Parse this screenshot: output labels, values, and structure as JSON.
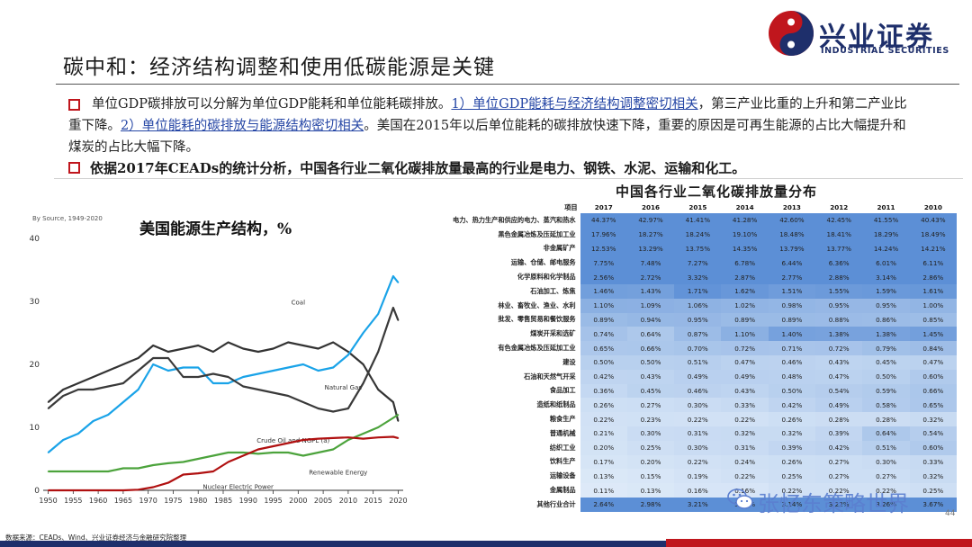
{
  "page": {
    "title": "碳中和：经济结构调整和使用低碳能源是关键",
    "logo": {
      "cn": "兴业证券",
      "en": "INDUSTRIAL SECURITIES"
    },
    "bullet1": {
      "p1": "单位GDP碳排放可以分解为单位GDP能耗和单位能耗碳排放。",
      "p2": "1）单位GDP能耗与经济结构调整密切相关",
      "p3": "，第三产业比重的上升和第二产业比重下降。",
      "p4": "2）单位能耗的碳排放与能源结构密切相关",
      "p5": "。美国在2015年以后单位能耗的碳排放快速下降，重要的原因是可再生能源的占比大幅提升和煤炭的占比大幅下降。"
    },
    "bullet2": "依据2017年CEADs的统计分析，中国各行业二氧化碳排放量最高的行业是电力、钢铁、水泥、运输和化工。",
    "footer_source": "数据来源：CEADs、Wind、兴业证券经济与金融研究院整理",
    "page_number": "44",
    "watermark": "张忆东策略世界",
    "colors": {
      "brand_navy": "#1e2f6b",
      "brand_red": "#c0161d",
      "highlight_blue": "#2546a5"
    }
  },
  "chart_data": [
    {
      "type": "line",
      "title": "美国能源生产结构，%",
      "source_note": "By Source, 1949-2020",
      "x": [
        1950,
        1953,
        1956,
        1959,
        1962,
        1965,
        1968,
        1971,
        1974,
        1977,
        1980,
        1983,
        1986,
        1989,
        1992,
        1995,
        1998,
        2001,
        2004,
        2007,
        2010,
        2013,
        2016,
        2019,
        2020
      ],
      "xticks": [
        1950,
        1955,
        1960,
        1965,
        1970,
        1975,
        1980,
        1985,
        1990,
        1995,
        2000,
        2005,
        2010,
        2015,
        2020
      ],
      "yticks": [
        0,
        10,
        20,
        30,
        40
      ],
      "ylim": [
        0,
        40
      ],
      "xlim": [
        1949,
        2021
      ],
      "series": [
        {
          "name": "Coal",
          "color": "#333333",
          "values": [
            14,
            16,
            17,
            18,
            19,
            20,
            21,
            23,
            22,
            22.5,
            23,
            22,
            23.5,
            22.5,
            22,
            22.5,
            23.5,
            23,
            22.5,
            23.5,
            22,
            20,
            16,
            14,
            11
          ]
        },
        {
          "name": "Natural Gas",
          "color": "#1aa3e8",
          "values": [
            6,
            8,
            9,
            11,
            12,
            14,
            16,
            20,
            19,
            19.5,
            19.5,
            17,
            17,
            18,
            18.5,
            19,
            19.5,
            20,
            19,
            19.5,
            21.5,
            25,
            28,
            34,
            33
          ]
        },
        {
          "name": "Crude Oil and NGPL (a)",
          "color": "#3a3a3a",
          "values": [
            13,
            15,
            16,
            16,
            16.5,
            17,
            19,
            21,
            21,
            18,
            18,
            18.5,
            18,
            16.5,
            16,
            15.5,
            15,
            14,
            13,
            12.5,
            13,
            17,
            22,
            29,
            27
          ]
        },
        {
          "name": "Renewable Energy",
          "color": "#4ca33c",
          "values": [
            3,
            3,
            3,
            3,
            3,
            3.5,
            3.5,
            4,
            4.3,
            4.5,
            5,
            5.5,
            6,
            6,
            5.8,
            6,
            6,
            5.5,
            6,
            6.5,
            8,
            9,
            10,
            11.5,
            12
          ]
        },
        {
          "name": "Nuclear Electric Power",
          "color": "#b01010",
          "values": [
            0,
            0,
            0,
            0,
            0,
            0,
            0.1,
            0.5,
            1.2,
            2.5,
            2.7,
            3,
            4.5,
            5.5,
            6.5,
            7,
            7.5,
            8,
            8.2,
            8.3,
            8.4,
            8.2,
            8.4,
            8.5,
            8.3
          ]
        }
      ]
    },
    {
      "type": "table",
      "title": "中国各行业二氧化碳排放量分布",
      "columns": [
        "项目",
        "2017",
        "2016",
        "2015",
        "2014",
        "2013",
        "2012",
        "2011",
        "2010"
      ],
      "rows": [
        {
          "label": "电力、热力生产和供应的电力、蒸汽和热水",
          "values": [
            "44.37%",
            "42.97%",
            "41.41%",
            "41.28%",
            "42.60%",
            "42.45%",
            "41.55%",
            "40.43%"
          ]
        },
        {
          "label": "黑色金属冶炼及压延加工业",
          "values": [
            "17.96%",
            "18.27%",
            "18.24%",
            "19.10%",
            "18.48%",
            "18.41%",
            "18.29%",
            "18.49%"
          ]
        },
        {
          "label": "非金属矿产",
          "values": [
            "12.53%",
            "13.29%",
            "13.75%",
            "14.35%",
            "13.79%",
            "13.77%",
            "14.24%",
            "14.21%"
          ]
        },
        {
          "label": "运输、仓储、邮电服务",
          "values": [
            "7.75%",
            "7.48%",
            "7.27%",
            "6.78%",
            "6.44%",
            "6.36%",
            "6.01%",
            "6.11%"
          ]
        },
        {
          "label": "化学原料和化学制品",
          "values": [
            "2.56%",
            "2.72%",
            "3.32%",
            "2.87%",
            "2.77%",
            "2.88%",
            "3.14%",
            "2.86%"
          ]
        },
        {
          "label": "石油加工、炼焦",
          "values": [
            "1.46%",
            "1.43%",
            "1.71%",
            "1.62%",
            "1.51%",
            "1.55%",
            "1.59%",
            "1.61%"
          ]
        },
        {
          "label": "林业、畜牧业、渔业、水利",
          "values": [
            "1.10%",
            "1.09%",
            "1.06%",
            "1.02%",
            "0.98%",
            "0.95%",
            "0.95%",
            "1.00%"
          ]
        },
        {
          "label": "批发、零售贸易和餐饮服务",
          "values": [
            "0.89%",
            "0.94%",
            "0.95%",
            "0.89%",
            "0.89%",
            "0.88%",
            "0.86%",
            "0.85%"
          ]
        },
        {
          "label": "煤炭开采和选矿",
          "values": [
            "0.74%",
            "0.64%",
            "0.87%",
            "1.10%",
            "1.40%",
            "1.38%",
            "1.38%",
            "1.45%"
          ]
        },
        {
          "label": "有色金属冶炼及压延加工业",
          "values": [
            "0.65%",
            "0.66%",
            "0.70%",
            "0.72%",
            "0.71%",
            "0.72%",
            "0.79%",
            "0.84%"
          ]
        },
        {
          "label": "建设",
          "values": [
            "0.50%",
            "0.50%",
            "0.51%",
            "0.47%",
            "0.46%",
            "0.43%",
            "0.45%",
            "0.47%"
          ]
        },
        {
          "label": "石油和天然气开采",
          "values": [
            "0.42%",
            "0.43%",
            "0.49%",
            "0.49%",
            "0.48%",
            "0.47%",
            "0.50%",
            "0.60%"
          ]
        },
        {
          "label": "食品加工",
          "values": [
            "0.36%",
            "0.45%",
            "0.46%",
            "0.43%",
            "0.50%",
            "0.54%",
            "0.59%",
            "0.66%"
          ]
        },
        {
          "label": "造纸和纸制品",
          "values": [
            "0.26%",
            "0.27%",
            "0.30%",
            "0.33%",
            "0.42%",
            "0.49%",
            "0.58%",
            "0.65%"
          ]
        },
        {
          "label": "粮食生产",
          "values": [
            "0.22%",
            "0.23%",
            "0.22%",
            "0.22%",
            "0.26%",
            "0.28%",
            "0.28%",
            "0.32%"
          ]
        },
        {
          "label": "普通机械",
          "values": [
            "0.21%",
            "0.30%",
            "0.31%",
            "0.32%",
            "0.32%",
            "0.39%",
            "0.64%",
            "0.54%"
          ]
        },
        {
          "label": "纺织工业",
          "values": [
            "0.20%",
            "0.25%",
            "0.30%",
            "0.31%",
            "0.39%",
            "0.42%",
            "0.51%",
            "0.60%"
          ]
        },
        {
          "label": "饮料生产",
          "values": [
            "0.17%",
            "0.20%",
            "0.22%",
            "0.24%",
            "0.26%",
            "0.27%",
            "0.30%",
            "0.33%"
          ]
        },
        {
          "label": "运输设备",
          "values": [
            "0.13%",
            "0.15%",
            "0.19%",
            "0.22%",
            "0.25%",
            "0.27%",
            "0.27%",
            "0.32%"
          ]
        },
        {
          "label": "金属制品",
          "values": [
            "0.11%",
            "0.13%",
            "0.16%",
            "0.16%",
            "0.22%",
            "0.22%",
            "0.22%",
            "0.25%"
          ]
        },
        {
          "label": "其他行业合计",
          "values": [
            "2.64%",
            "2.98%",
            "3.21%",
            "3.09%",
            "3.14%",
            "3.22%",
            "3.26%",
            "3.67%"
          ]
        }
      ]
    }
  ]
}
